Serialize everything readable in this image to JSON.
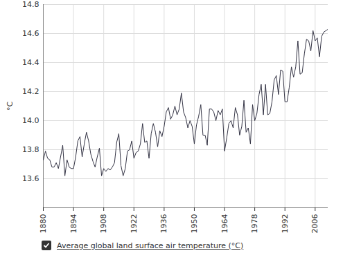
{
  "chart_data": {
    "type": "line",
    "y_label": "°C",
    "x": [
      1880,
      1881,
      1882,
      1883,
      1884,
      1885,
      1886,
      1887,
      1888,
      1889,
      1890,
      1891,
      1892,
      1893,
      1894,
      1895,
      1896,
      1897,
      1898,
      1899,
      1900,
      1901,
      1902,
      1903,
      1904,
      1905,
      1906,
      1907,
      1908,
      1909,
      1910,
      1911,
      1912,
      1913,
      1914,
      1915,
      1916,
      1917,
      1918,
      1919,
      1920,
      1921,
      1922,
      1923,
      1924,
      1925,
      1926,
      1927,
      1928,
      1929,
      1930,
      1931,
      1932,
      1933,
      1934,
      1935,
      1936,
      1937,
      1938,
      1939,
      1940,
      1941,
      1942,
      1943,
      1944,
      1945,
      1946,
      1947,
      1948,
      1949,
      1950,
      1951,
      1952,
      1953,
      1954,
      1955,
      1956,
      1957,
      1958,
      1959,
      1960,
      1961,
      1962,
      1963,
      1964,
      1965,
      1966,
      1967,
      1968,
      1969,
      1970,
      1971,
      1972,
      1973,
      1974,
      1975,
      1976,
      1977,
      1978,
      1979,
      1980,
      1981,
      1982,
      1983,
      1984,
      1985,
      1986,
      1987,
      1988,
      1989,
      1990,
      1991,
      1992,
      1993,
      1994,
      1995,
      1996,
      1997,
      1998,
      1999,
      2000,
      2001,
      2002,
      2003,
      2004,
      2005,
      2006,
      2007,
      2008,
      2009,
      2010,
      2011,
      2012
    ],
    "series": [
      {
        "name": "Average global land surface air temperature (°C)",
        "color": "#333344",
        "values": [
          13.73,
          13.79,
          13.74,
          13.73,
          13.68,
          13.68,
          13.71,
          13.67,
          13.75,
          13.83,
          13.62,
          13.73,
          13.68,
          13.67,
          13.67,
          13.75,
          13.86,
          13.89,
          13.75,
          13.84,
          13.92,
          13.86,
          13.77,
          13.72,
          13.68,
          13.75,
          13.81,
          13.62,
          13.67,
          13.65,
          13.67,
          13.66,
          13.68,
          13.71,
          13.85,
          13.91,
          13.69,
          13.62,
          13.67,
          13.79,
          13.8,
          13.86,
          13.74,
          13.78,
          13.79,
          13.84,
          13.98,
          13.85,
          13.86,
          13.74,
          13.91,
          13.98,
          13.92,
          13.82,
          13.93,
          13.89,
          13.96,
          14.06,
          14.09,
          14.01,
          14.04,
          14.1,
          14.04,
          14.08,
          14.19,
          14.06,
          14.02,
          13.95,
          14.0,
          13.96,
          13.84,
          13.97,
          14.03,
          14.11,
          13.9,
          13.9,
          13.83,
          14.08,
          14.08,
          14.06,
          14.0,
          14.07,
          14.04,
          14.08,
          13.79,
          13.88,
          13.98,
          14.0,
          13.95,
          14.09,
          14.04,
          13.9,
          13.96,
          14.14,
          13.92,
          13.95,
          13.84,
          14.11,
          14.0,
          14.05,
          14.18,
          14.25,
          14.04,
          14.25,
          14.04,
          14.05,
          14.13,
          14.28,
          14.31,
          14.18,
          14.35,
          14.34,
          14.13,
          14.13,
          14.23,
          14.37,
          14.3,
          14.37,
          14.55,
          14.32,
          14.33,
          14.46,
          14.56,
          14.55,
          14.48,
          14.62,
          14.55,
          14.57,
          14.44,
          14.58,
          14.61,
          14.62,
          14.63
        ]
      }
    ],
    "xlim": [
      1880,
      2012
    ],
    "xticks": [
      1880,
      1894,
      1908,
      1922,
      1936,
      1950,
      1964,
      1978,
      1992,
      2006
    ],
    "ylim": [
      13.4,
      14.8
    ],
    "yticks": [
      13.6,
      13.8,
      {
        "value": 14.0,
        "label": "14.0"
      },
      14.2,
      14.4,
      14.6,
      14.8
    ],
    "grid": true,
    "legend": "bottom"
  }
}
